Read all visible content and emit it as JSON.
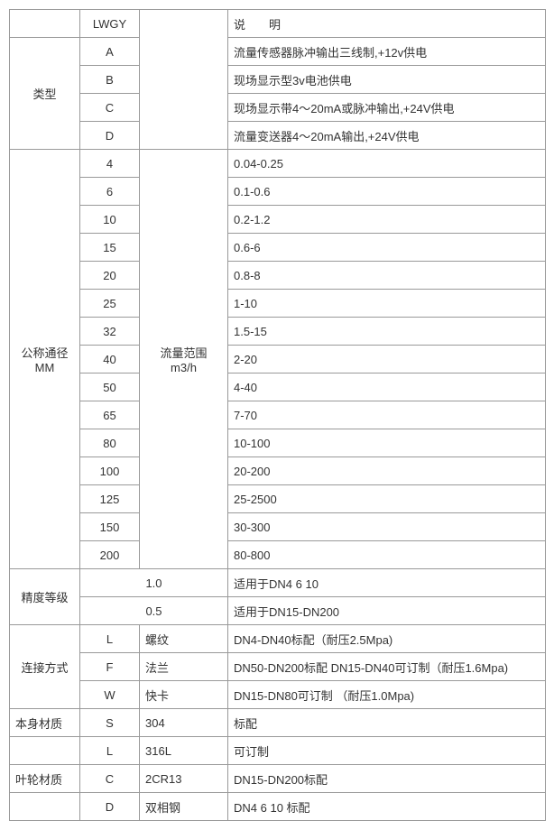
{
  "header": {
    "lwgy": "LWGY",
    "desc": "说　　明"
  },
  "type": {
    "label": "类型",
    "rows": [
      {
        "code": "A",
        "desc": "流量传感器脉冲输出三线制,+12v供电"
      },
      {
        "code": "B",
        "desc": "现场显示型3v电池供电"
      },
      {
        "code": "C",
        "desc": "现场显示带4～20mA或脉冲输出,+24V供电"
      },
      {
        "code": "D",
        "desc": "流量变送器4～20mA输出,+24V供电"
      }
    ]
  },
  "nominal": {
    "label_top": "公称通径",
    "label_bottom": "MM",
    "range_label_top": "流量范围",
    "range_label_bottom": "m3/h",
    "rows": [
      {
        "dn": "4",
        "range": "0.04-0.25"
      },
      {
        "dn": "6",
        "range": "0.1-0.6"
      },
      {
        "dn": "10",
        "range": "0.2-1.2"
      },
      {
        "dn": "15",
        "range": "0.6-6"
      },
      {
        "dn": "20",
        "range": "0.8-8"
      },
      {
        "dn": "25",
        "range": "1-10"
      },
      {
        "dn": "32",
        "range": "1.5-15"
      },
      {
        "dn": "40",
        "range": "2-20"
      },
      {
        "dn": "50",
        "range": "4-40"
      },
      {
        "dn": "65",
        "range": "7-70"
      },
      {
        "dn": "80",
        "range": "10-100"
      },
      {
        "dn": "100",
        "range": "20-200"
      },
      {
        "dn": "125",
        "range": "25-2500"
      },
      {
        "dn": "150",
        "range": "30-300"
      },
      {
        "dn": "200",
        "range": "80-800"
      }
    ]
  },
  "accuracy": {
    "label": "精度等级",
    "rows": [
      {
        "val": "1.0",
        "desc": "适用于DN4  6  10"
      },
      {
        "val": "0.5",
        "desc": "适用于DN15-DN200"
      }
    ]
  },
  "connection": {
    "label": "连接方式",
    "rows": [
      {
        "code": "L",
        "name": "螺纹",
        "desc": "DN4-DN40标配（耐压2.5Mpa)"
      },
      {
        "code": "F",
        "name": "法兰",
        "desc": "DN50-DN200标配 DN15-DN40可订制（耐压1.6Mpa)"
      },
      {
        "code": "W",
        "name": "快卡",
        "desc": "DN15-DN80可订制 （耐压1.0Mpa)"
      }
    ]
  },
  "body_material": {
    "label": "本身材质",
    "rows": [
      {
        "code": "S",
        "name": "304",
        "desc": "标配"
      },
      {
        "code": "L",
        "name": "316L",
        "desc": "可订制"
      }
    ]
  },
  "impeller_material": {
    "label": "叶轮材质",
    "rows": [
      {
        "code": "C",
        "name": "2CR13",
        "desc": "DN15-DN200标配"
      },
      {
        "code": "D",
        "name": "双相钢",
        "desc": "DN4 6 10 标配"
      }
    ]
  }
}
